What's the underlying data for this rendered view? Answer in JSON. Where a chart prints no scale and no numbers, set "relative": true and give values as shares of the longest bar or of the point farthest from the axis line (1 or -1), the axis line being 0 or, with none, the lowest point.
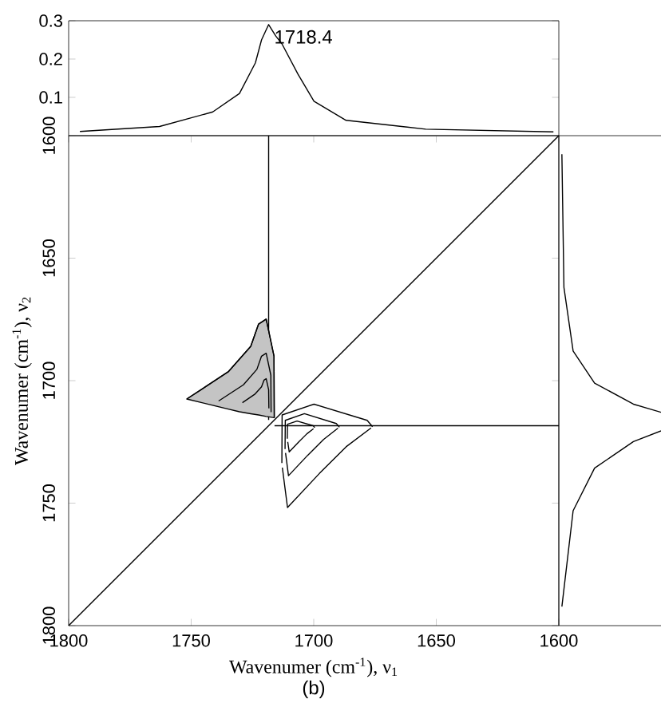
{
  "chart_data": [
    {
      "type": "line",
      "xlim": [
        1800,
        1600
      ],
      "ylim": [
        0,
        0.3
      ],
      "yticks": [
        0.1,
        0.2,
        0.3
      ],
      "tick_labels": "y",
      "annotations": [
        {
          "text": "1718.4",
          "x": 1718.4,
          "y": 0.29
        }
      ],
      "series": [
        {
          "color": "#000000",
          "x": [
            1795.4,
            1762.9,
            1741.2,
            1730.3,
            1723.8,
            1721.3,
            1718.4,
            1715.5,
            1713,
            1706.4,
            1699.9,
            1686.8,
            1654.3,
            1602.2
          ],
          "values": [
            0.011,
            0.024,
            0.062,
            0.11,
            0.19,
            0.25,
            0.29,
            0.26,
            0.24,
            0.16,
            0.09,
            0.04,
            0.017,
            0.01
          ]
        }
      ]
    },
    {
      "type": "line",
      "xlabel": "Wavenumer (cm$^{-1}$),  ν$_{1}$",
      "ylabel": "Wavenumer (cm$^{-1}$),  ν$_{2}$",
      "xlim": [
        1800,
        1600
      ],
      "ylim": [
        1800,
        1600
      ],
      "xticks": [
        1800,
        1750,
        1700,
        1650,
        1600
      ],
      "yticks": [
        1600,
        1650,
        1700,
        1750,
        1800
      ],
      "annotations": [
        "(b)"
      ],
      "series": [
        {
          "color": "#000000",
          "x": [
            1800,
            1600
          ],
          "values": [
            1800,
            1600
          ]
        },
        {
          "color": "#000000",
          "x": [
            1718.4,
            1718.4
          ],
          "values": [
            1600,
            1716
          ]
        },
        {
          "color": "#000000",
          "x": [
            1716,
            1600
          ],
          "values": [
            1718.4,
            1718.4
          ]
        },
        {
          "color": "#000000",
          "x": [
            1751.8,
            1734.9,
            1730.3,
            1725.7,
            1722.5,
            1719.4,
            1716.2,
            1716.1
          ],
          "values": [
            1707.5,
            1696.4,
            1691.2,
            1686,
            1676.9,
            1674.9,
            1690,
            1715.1
          ],
          "lower": [
            1707.5,
            1696.4,
            1691.2,
            1686,
            1676.9,
            1674.9,
            1690,
            1715.1
          ],
          "upper": [
            1707.5,
            1711.6,
            1712.7,
            1713.5,
            1714,
            1714.6,
            1715.1,
            1715.1
          ]
        },
        {
          "color": "#000000",
          "x": [
            1738.8,
            1728.7,
            1723.2,
            1721.3,
            1719.4,
            1717.5,
            1717.4
          ],
          "values": [
            1708.3,
            1701.7,
            1695.4,
            1690,
            1688.8,
            1697.8,
            1712.9
          ]
        },
        {
          "color": "#000000",
          "x": [
            1729.1,
            1724.1,
            1721.3,
            1720.3,
            1719.4,
            1718.4,
            1718.3
          ],
          "values": [
            1709,
            1705.6,
            1702.5,
            1699.8,
            1699.2,
            1703.7,
            1711.3
          ]
        },
        {
          "color": "#000000",
          "x": [
            1713,
            1712.9,
            1699.9,
            1678.2,
            1676
          ],
          "values": [
            1733.6,
            1714,
            1709.6,
            1716.2,
            1718.8
          ]
        },
        {
          "color": "#000000",
          "x": [
            1711.7,
            1711.6,
            1703.8,
            1690.8,
            1689.5
          ],
          "values": [
            1727.9,
            1716.2,
            1713.5,
            1717.5,
            1719
          ]
        },
        {
          "color": "#000000",
          "x": [
            1710.8,
            1710.7,
            1706.8,
            1700.2,
            1699.6
          ],
          "values": [
            1723.7,
            1717.8,
            1716.5,
            1718.4,
            1719.2
          ]
        },
        {
          "color": "#000000",
          "x": [
            1712.8,
            1710.7,
            1697.7,
            1686.8,
            1676.6
          ],
          "values": [
            1735.5,
            1751.8,
            1737.9,
            1727,
            1719.3
          ]
        },
        {
          "color": "#000000",
          "x": [
            1711.5,
            1710.3,
            1702.5,
            1696,
            1690.1
          ],
          "values": [
            1729.5,
            1738.8,
            1730.5,
            1724,
            1719.4
          ]
        },
        {
          "color": "#000000",
          "x": [
            1710.6,
            1710,
            1706.1,
            1702.8,
            1700.1
          ],
          "values": [
            1725,
            1729.1,
            1725,
            1721.7,
            1719.6
          ]
        }
      ]
    },
    {
      "type": "line",
      "relative": true,
      "orientation": "horizontal",
      "ylim": [
        1800,
        1600
      ],
      "tick_labels": false,
      "series": [
        {
          "color": "#000000",
          "x": [
            1607.6,
            1661.9,
            1687.9,
            1701,
            1709.6,
            1712.9,
            1716.5,
            1720.5,
            1724.9,
            1735.7,
            1753.1,
            1792.2
          ],
          "values": [
            0.03,
            0.05,
            0.14,
            0.35,
            0.73,
            1,
            null,
            1,
            0.73,
            0.35,
            0.14,
            0.03
          ]
        }
      ]
    }
  ]
}
